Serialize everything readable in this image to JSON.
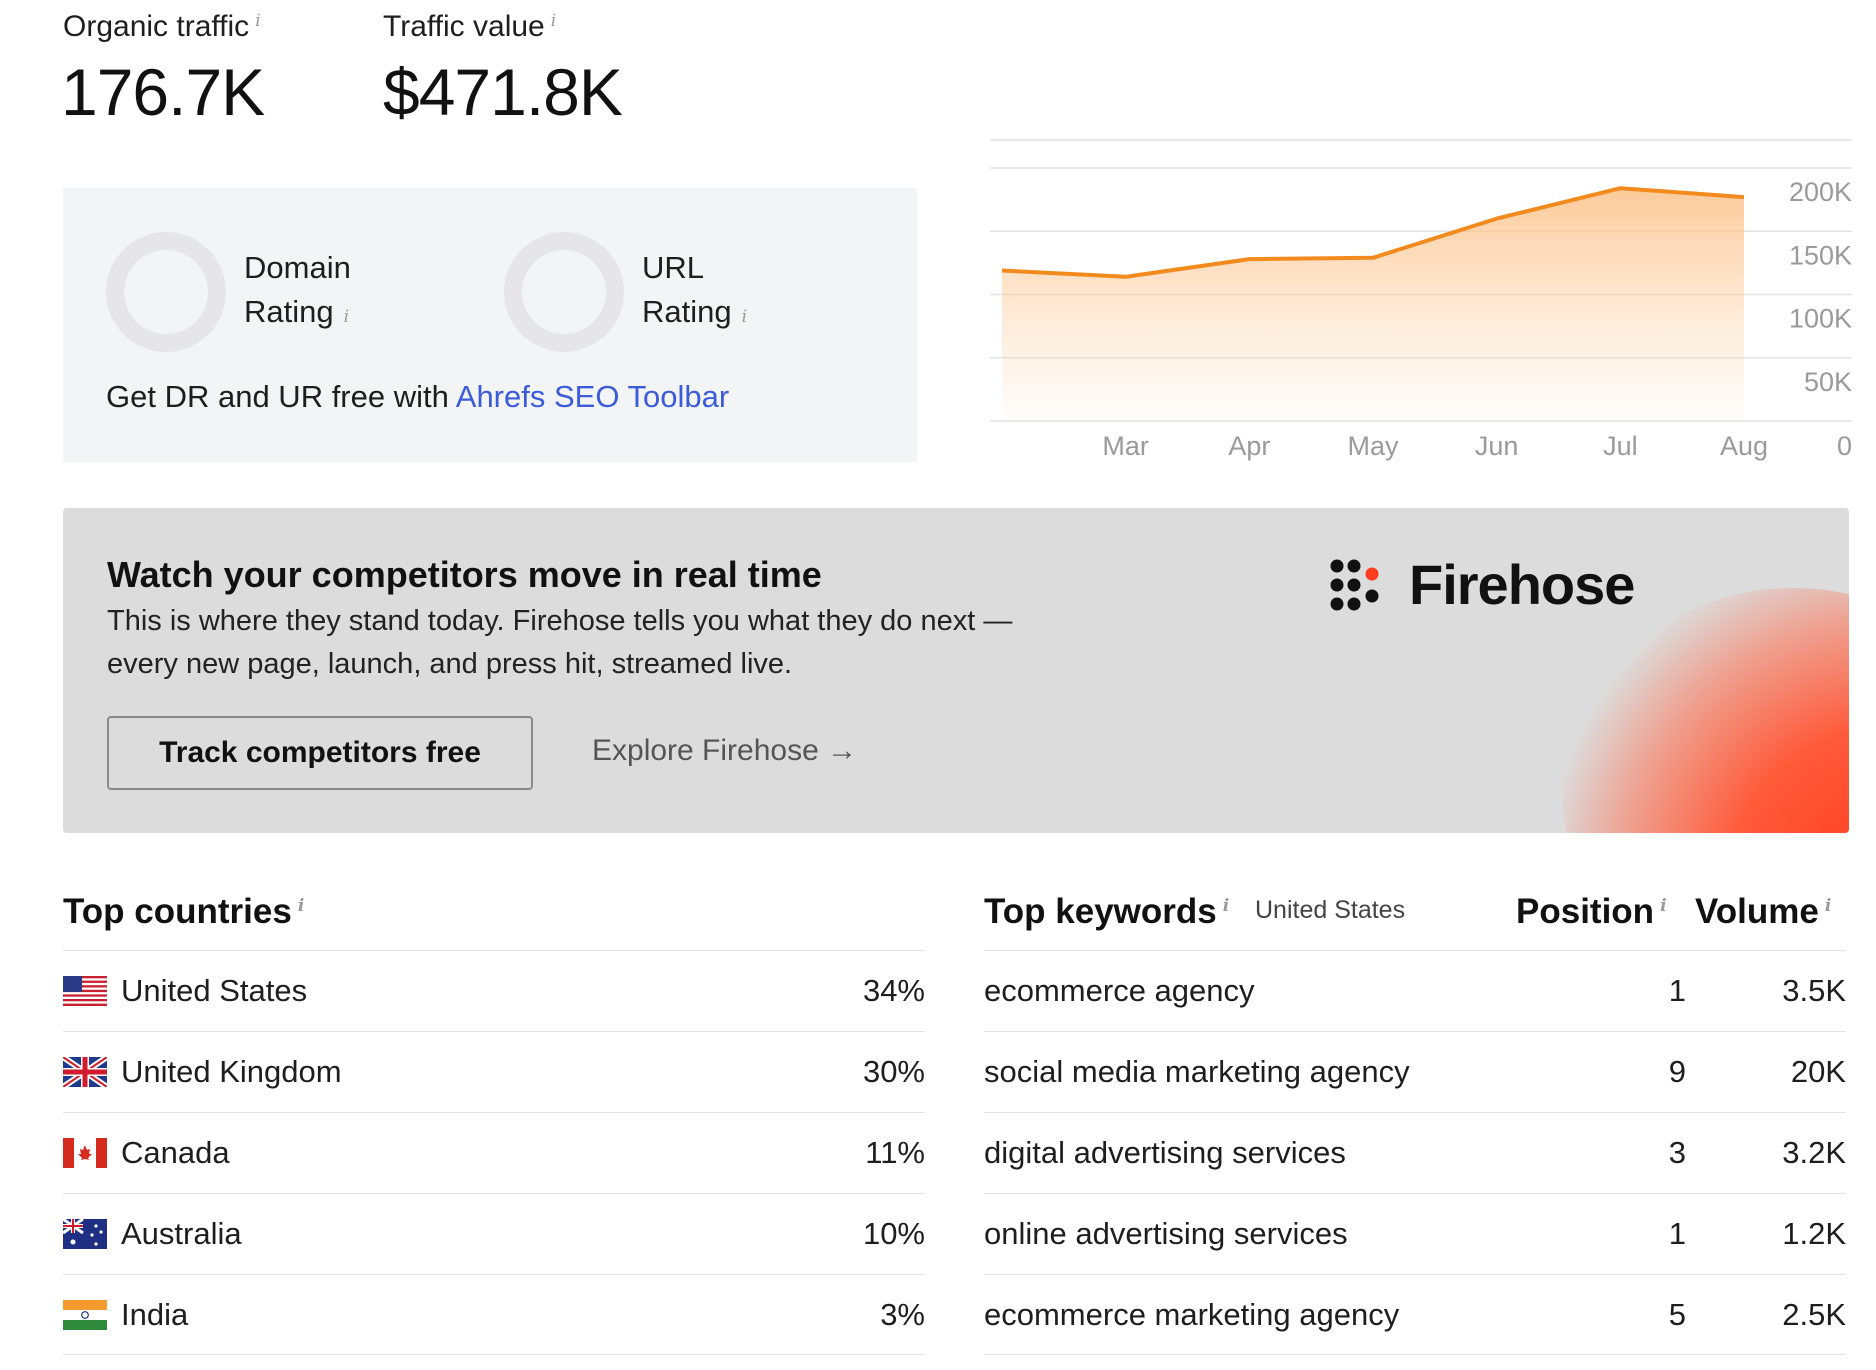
{
  "stats": {
    "organic_traffic": {
      "label": "Organic traffic",
      "value": "176.7K"
    },
    "traffic_value": {
      "label": "Traffic value",
      "value": "$471.8K"
    }
  },
  "ratings": {
    "domain": {
      "line1": "Domain",
      "line2": "Rating"
    },
    "url": {
      "line1": "URL",
      "line2": "Rating"
    },
    "toolbar_prefix": "Get DR and UR free with",
    "toolbar_link": "Ahrefs SEO Toolbar"
  },
  "info_glyph": "i",
  "chart_data": {
    "type": "area",
    "categories": [
      "",
      "Mar",
      "Apr",
      "May",
      "Jun",
      "Jul",
      "Aug"
    ],
    "x_tick_labels": [
      "Mar",
      "Apr",
      "May",
      "Jun",
      "Jul",
      "Aug"
    ],
    "series": [
      {
        "values": [
          119000,
          114000,
          128000,
          129000,
          160000,
          184000,
          177000
        ]
      }
    ],
    "y_ticks": [
      "200K",
      "150K",
      "100K",
      "50K",
      "0"
    ],
    "ylim": [
      0,
      200000
    ],
    "line_color": "#f28a1e",
    "fill_color": "#fdd0a2",
    "grid": true,
    "y_axis_position": "right"
  },
  "promo": {
    "title": "Watch your competitors move in real time",
    "text": "This is where they stand today. Firehose tells you what they do next — every new page, launch, and press hit, streamed live.",
    "primary_button": "Track competitors free",
    "secondary_link": "Explore Firehose →",
    "brand": "Firehose",
    "brand_icon": "firehose-logo-icon",
    "accent_color": "#ff3c1f"
  },
  "top_countries": {
    "title": "Top countries",
    "rows": [
      {
        "country": "United States",
        "flag": "us-flag-icon",
        "share": "34%"
      },
      {
        "country": "United Kingdom",
        "flag": "uk-flag-icon",
        "share": "30%"
      },
      {
        "country": "Canada",
        "flag": "canada-flag-icon",
        "share": "11%"
      },
      {
        "country": "Australia",
        "flag": "australia-flag-icon",
        "share": "10%"
      },
      {
        "country": "India",
        "flag": "india-flag-icon",
        "share": "3%"
      }
    ]
  },
  "top_keywords": {
    "title": "Top keywords",
    "location": "United States",
    "position_header": "Position",
    "volume_header": "Volume",
    "rows": [
      {
        "keyword": "ecommerce agency",
        "position": "1",
        "volume": "3.5K"
      },
      {
        "keyword": "social media marketing agency",
        "position": "9",
        "volume": "20K"
      },
      {
        "keyword": "digital advertising services",
        "position": "3",
        "volume": "3.2K"
      },
      {
        "keyword": "online advertising services",
        "position": "1",
        "volume": "1.2K"
      },
      {
        "keyword": "ecommerce marketing agency",
        "position": "5",
        "volume": "2.5K"
      }
    ]
  }
}
